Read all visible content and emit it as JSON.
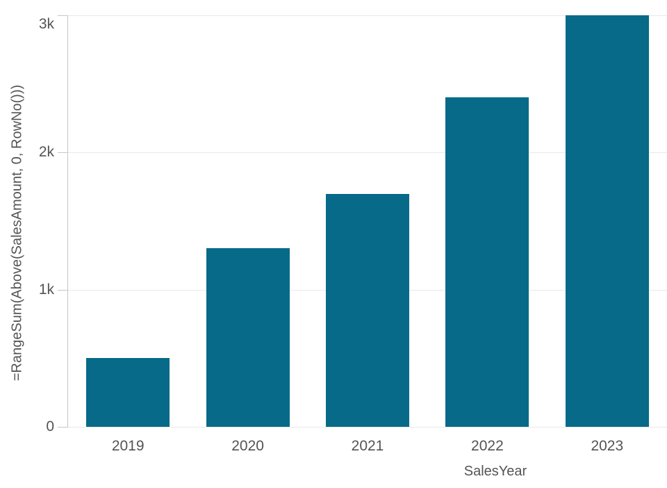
{
  "chart_data": {
    "type": "bar",
    "title": "",
    "xlabel": "SalesYear",
    "ylabel": "=RangeSum(Above(SalesAmount, 0, RowNo()))",
    "categories": [
      "2019",
      "2020",
      "2021",
      "2022",
      "2023"
    ],
    "values": [
      500,
      1300,
      1700,
      2400,
      3000
    ],
    "ylim": [
      0,
      3000
    ],
    "y_tick_labels": [
      "0",
      "1k",
      "2k",
      "3k"
    ],
    "y_tick_values": [
      0,
      1000,
      2000,
      3000
    ],
    "grid": "horizontal-only",
    "legend": "none"
  },
  "colors": {
    "bar": "#066a88",
    "axis_text": "#545454",
    "gridline": "#e9e9e9",
    "axis_line": "#c6c6c6",
    "background": "#ffffff"
  }
}
